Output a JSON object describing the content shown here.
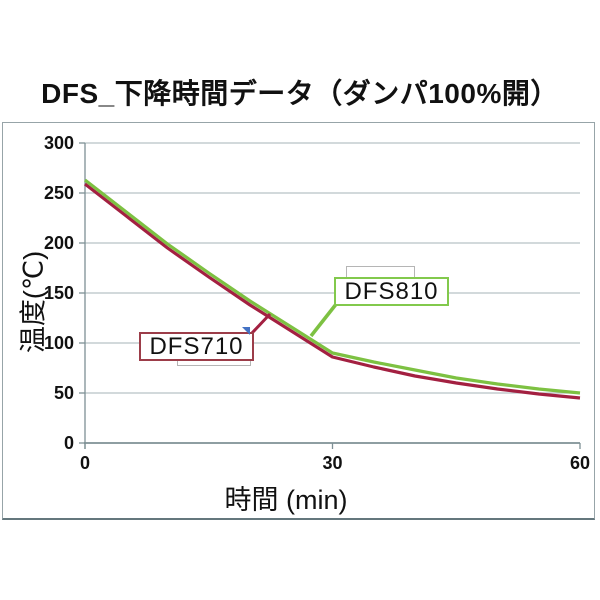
{
  "chart_data": {
    "type": "line",
    "title": "DFS_下降時間データ（ダンパ100%開）",
    "xlabel": "時間 (min)",
    "ylabel": "温度(℃)",
    "xlim": [
      0,
      60
    ],
    "ylim": [
      0,
      300
    ],
    "x_ticks": [
      0,
      30,
      60
    ],
    "y_ticks": [
      300,
      250,
      200,
      150,
      100,
      50,
      0
    ],
    "grid": "horizontal-only",
    "legend": "callout-boxes-on-plot",
    "x": [
      0,
      5,
      10,
      15,
      20,
      25,
      30,
      35,
      40,
      45,
      50,
      55,
      60
    ],
    "series": [
      {
        "name": "DFS810",
        "color": "#7dc142",
        "callout_border": "#82c94c",
        "values": [
          263,
          231,
          199,
          170,
          142,
          116,
          90,
          81,
          73,
          65,
          59,
          54,
          50
        ]
      },
      {
        "name": "DFS710",
        "color": "#a32041",
        "callout_border": "#9c3d49",
        "values": [
          259,
          227,
          195,
          166,
          138,
          112,
          86,
          76,
          67,
          60,
          54,
          49,
          45
        ]
      }
    ],
    "colors": {
      "gridline": "#b7c2c5",
      "axis": "#7e9095",
      "frame": "#97a4a8",
      "selection_marker": "#4472c4",
      "bracket": "#b5b5b5",
      "text": "#111111"
    }
  }
}
